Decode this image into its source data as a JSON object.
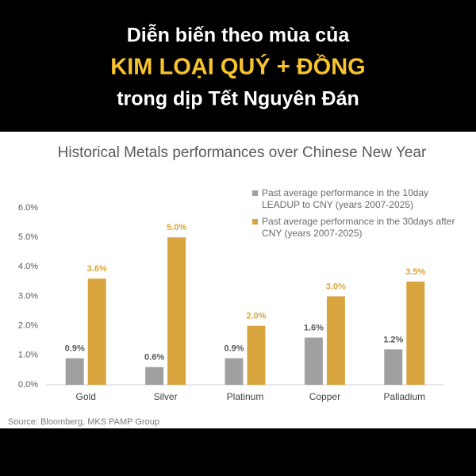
{
  "header": {
    "line1": "Diễn biến theo mùa của",
    "line2": "KIM LOẠI QUÝ + ĐỒNG",
    "line3": "trong dịp Tết Nguyên Đán"
  },
  "chart_data": {
    "type": "bar",
    "title": "Historical Metals performances over Chinese New Year",
    "categories": [
      "Gold",
      "Silver",
      "Platinum",
      "Copper",
      "Palladium"
    ],
    "series": [
      {
        "name": "Past average  performance in the 10day LEADUP to CNY (years 2007-2025)",
        "color": "#a0a0a0",
        "values": [
          0.9,
          0.6,
          0.9,
          1.6,
          1.2
        ],
        "value_labels": [
          "0.9%",
          "0.6%",
          "0.9%",
          "1.6%",
          "1.2%"
        ]
      },
      {
        "name": "Past average performance in the 30days after CNY (years 2007-2025)",
        "color": "#d9a53f",
        "values": [
          3.6,
          5.0,
          2.0,
          3.0,
          3.5
        ],
        "value_labels": [
          "3.6%",
          "5.0%",
          "2.0%",
          "3.0%",
          "3.5%"
        ]
      }
    ],
    "ylim": [
      0,
      6
    ],
    "yticks": [
      {
        "value": 0,
        "label": "0.0%"
      },
      {
        "value": 1,
        "label": "1.0%"
      },
      {
        "value": 2,
        "label": "2.0%"
      },
      {
        "value": 3,
        "label": "3.0%"
      },
      {
        "value": 4,
        "label": "4.0%"
      },
      {
        "value": 5,
        "label": "5.0%"
      },
      {
        "value": 6,
        "label": "6.0%"
      }
    ],
    "grid": false,
    "legend": "top-right",
    "source": "Source: Bloomberg, MKS PAMP Group"
  }
}
